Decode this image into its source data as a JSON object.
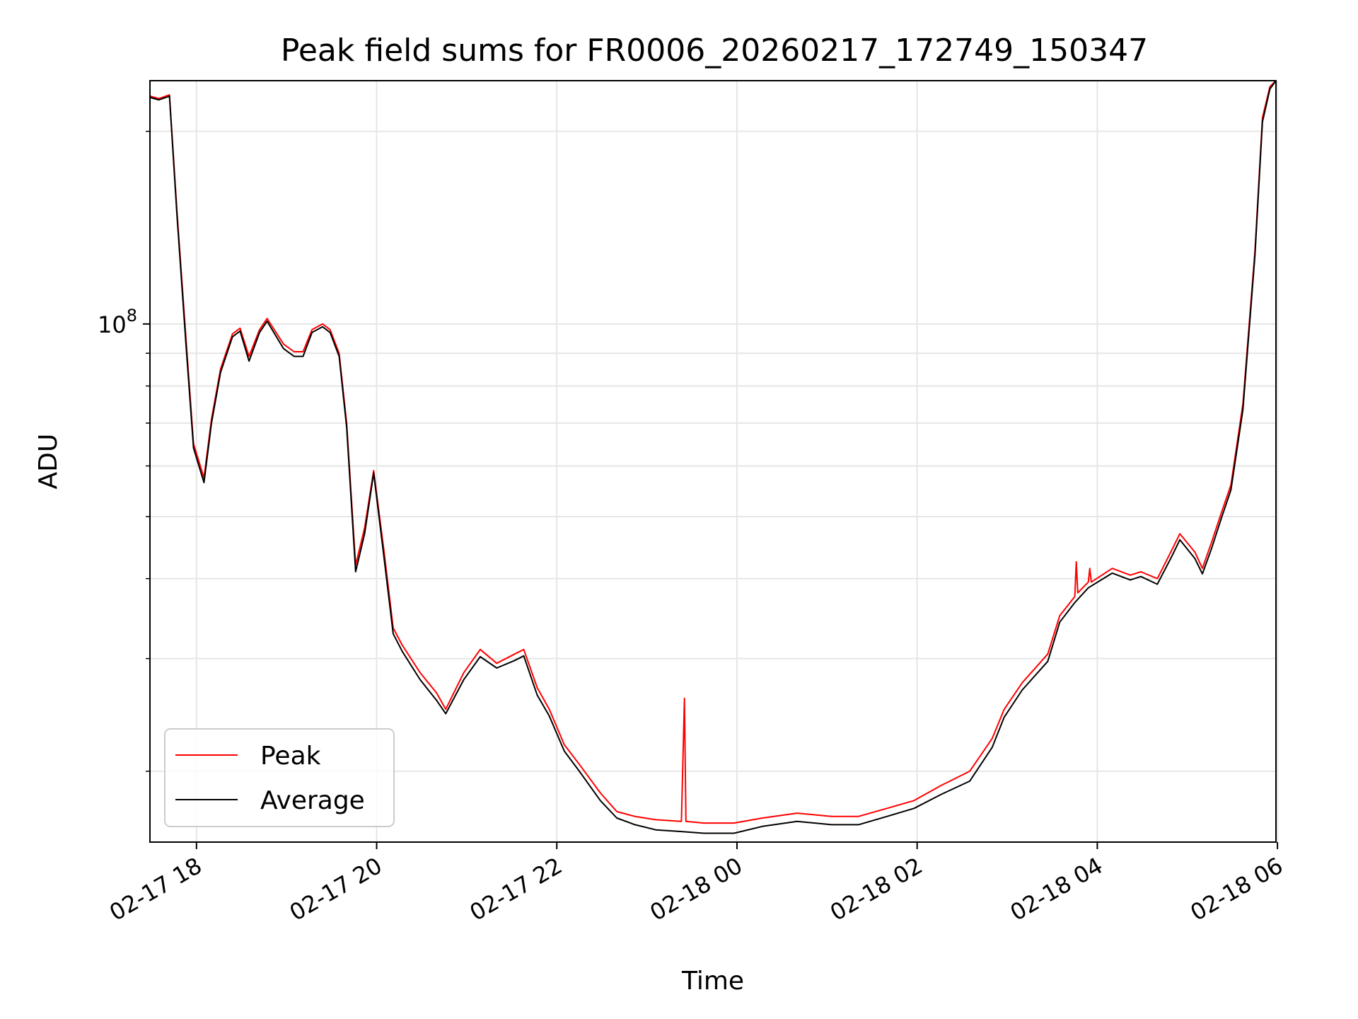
{
  "chart_data": {
    "type": "line",
    "title": "Peak field sums for FR0006_20260217_172749_150347",
    "xlabel": "Time",
    "ylabel": "ADU",
    "yscale": "log",
    "ylim": [
      15500000,
      240000000
    ],
    "xlim": [
      "2026-02-17 17:29",
      "2026-02-18 05:59"
    ],
    "x_ticks": [
      "02-17 18",
      "02-17 20",
      "02-17 22",
      "02-18 00",
      "02-18 02",
      "02-18 04",
      "02-18 06"
    ],
    "y_major_ticks": [
      {
        "value": 100000000,
        "base": "10",
        "exponent": "8"
      }
    ],
    "y_minor_ticks": [
      20000000,
      30000000,
      40000000,
      50000000,
      60000000,
      70000000,
      80000000,
      90000000,
      200000000
    ],
    "grid": true,
    "legend": {
      "position": "lower-left",
      "entries": [
        "Peak",
        "Average"
      ]
    },
    "series": [
      {
        "name": "Peak",
        "color": "#ff0000",
        "points": [
          [
            "2026-02-17 17:29",
            227000000
          ],
          [
            "2026-02-17 17:35",
            225000000
          ],
          [
            "2026-02-17 17:42",
            228000000
          ],
          [
            "2026-02-17 17:47",
            150000000
          ],
          [
            "2026-02-17 17:53",
            95000000
          ],
          [
            "2026-02-17 17:58",
            65000000
          ],
          [
            "2026-02-17 18:05",
            57500000
          ],
          [
            "2026-02-17 18:10",
            71000000
          ],
          [
            "2026-02-17 18:16",
            85000000
          ],
          [
            "2026-02-17 18:24",
            96500000
          ],
          [
            "2026-02-17 18:29",
            98500000
          ],
          [
            "2026-02-17 18:35",
            89000000
          ],
          [
            "2026-02-17 18:42",
            98000000
          ],
          [
            "2026-02-17 18:47",
            102000000
          ],
          [
            "2026-02-17 18:58",
            93000000
          ],
          [
            "2026-02-17 19:05",
            90500000
          ],
          [
            "2026-02-17 19:11",
            90500000
          ],
          [
            "2026-02-17 19:17",
            98000000
          ],
          [
            "2026-02-17 19:24",
            100000000
          ],
          [
            "2026-02-17 19:29",
            98000000
          ],
          [
            "2026-02-17 19:35",
            90000000
          ],
          [
            "2026-02-17 19:40",
            70000000
          ],
          [
            "2026-02-17 19:46",
            42000000
          ],
          [
            "2026-02-17 19:52",
            48000000
          ],
          [
            "2026-02-17 19:58",
            59000000
          ],
          [
            "2026-02-17 20:05",
            44000000
          ],
          [
            "2026-02-17 20:11",
            33500000
          ],
          [
            "2026-02-17 20:17",
            31500000
          ],
          [
            "2026-02-17 20:29",
            28500000
          ],
          [
            "2026-02-17 20:40",
            26500000
          ],
          [
            "2026-02-17 20:46",
            25000000
          ],
          [
            "2026-02-17 20:58",
            28500000
          ],
          [
            "2026-02-17 21:09",
            31000000
          ],
          [
            "2026-02-17 21:20",
            29500000
          ],
          [
            "2026-02-17 21:32",
            30500000
          ],
          [
            "2026-02-17 21:38",
            31000000
          ],
          [
            "2026-02-17 21:47",
            27000000
          ],
          [
            "2026-02-17 21:55",
            25000000
          ],
          [
            "2026-02-17 22:05",
            22000000
          ],
          [
            "2026-02-17 22:15",
            20500000
          ],
          [
            "2026-02-17 22:29",
            18500000
          ],
          [
            "2026-02-17 22:40",
            17300000
          ],
          [
            "2026-02-17 22:52",
            17000000
          ],
          [
            "2026-02-17 23:06",
            16800000
          ],
          [
            "2026-02-17 23:23",
            16700000
          ],
          [
            "2026-02-17 23:25",
            26000000
          ],
          [
            "2026-02-17 23:26",
            16700000
          ],
          [
            "2026-02-17 23:38",
            16600000
          ],
          [
            "2026-02-17 23:58",
            16600000
          ],
          [
            "2026-02-18 00:17",
            16900000
          ],
          [
            "2026-02-18 00:40",
            17200000
          ],
          [
            "2026-02-18 01:03",
            17000000
          ],
          [
            "2026-02-18 01:21",
            17000000
          ],
          [
            "2026-02-18 01:40",
            17500000
          ],
          [
            "2026-02-18 01:58",
            18000000
          ],
          [
            "2026-02-18 02:16",
            19000000
          ],
          [
            "2026-02-18 02:35",
            20000000
          ],
          [
            "2026-02-18 02:50",
            22500000
          ],
          [
            "2026-02-18 02:58",
            25000000
          ],
          [
            "2026-02-18 03:10",
            27500000
          ],
          [
            "2026-02-18 03:27",
            30500000
          ],
          [
            "2026-02-18 03:35",
            35000000
          ],
          [
            "2026-02-18 03:45",
            37500000
          ],
          [
            "2026-02-18 03:46",
            42500000
          ],
          [
            "2026-02-18 03:47",
            38000000
          ],
          [
            "2026-02-18 03:54",
            39500000
          ],
          [
            "2026-02-18 03:55",
            41500000
          ],
          [
            "2026-02-18 03:56",
            39500000
          ],
          [
            "2026-02-18 04:10",
            41500000
          ],
          [
            "2026-02-18 04:22",
            40500000
          ],
          [
            "2026-02-18 04:29",
            41000000
          ],
          [
            "2026-02-18 04:40",
            40000000
          ],
          [
            "2026-02-18 04:50",
            44500000
          ],
          [
            "2026-02-18 04:55",
            47000000
          ],
          [
            "2026-02-18 05:05",
            44000000
          ],
          [
            "2026-02-18 05:10",
            41500000
          ],
          [
            "2026-02-18 05:16",
            45500000
          ],
          [
            "2026-02-18 05:23",
            51000000
          ],
          [
            "2026-02-18 05:29",
            56000000
          ],
          [
            "2026-02-18 05:37",
            75000000
          ],
          [
            "2026-02-18 05:45",
            130000000
          ],
          [
            "2026-02-18 05:50",
            210000000
          ],
          [
            "2026-02-18 05:55",
            235000000
          ],
          [
            "2026-02-18 05:59",
            240000000
          ]
        ]
      },
      {
        "name": "Average",
        "color": "#000000",
        "points": [
          [
            "2026-02-17 17:29",
            226000000
          ],
          [
            "2026-02-17 17:35",
            224000000
          ],
          [
            "2026-02-17 17:42",
            227000000
          ],
          [
            "2026-02-17 17:47",
            148000000
          ],
          [
            "2026-02-17 17:53",
            93000000
          ],
          [
            "2026-02-17 17:58",
            64000000
          ],
          [
            "2026-02-17 18:05",
            56500000
          ],
          [
            "2026-02-17 18:10",
            70000000
          ],
          [
            "2026-02-17 18:16",
            84000000
          ],
          [
            "2026-02-17 18:24",
            95500000
          ],
          [
            "2026-02-17 18:29",
            97500000
          ],
          [
            "2026-02-17 18:35",
            87500000
          ],
          [
            "2026-02-17 18:42",
            97000000
          ],
          [
            "2026-02-17 18:47",
            101000000
          ],
          [
            "2026-02-17 18:58",
            91500000
          ],
          [
            "2026-02-17 19:05",
            89000000
          ],
          [
            "2026-02-17 19:11",
            89000000
          ],
          [
            "2026-02-17 19:17",
            97000000
          ],
          [
            "2026-02-17 19:24",
            99000000
          ],
          [
            "2026-02-17 19:29",
            97000000
          ],
          [
            "2026-02-17 19:35",
            89000000
          ],
          [
            "2026-02-17 19:40",
            69000000
          ],
          [
            "2026-02-17 19:46",
            41000000
          ],
          [
            "2026-02-17 19:52",
            47000000
          ],
          [
            "2026-02-17 19:58",
            58500000
          ],
          [
            "2026-02-17 20:05",
            43000000
          ],
          [
            "2026-02-17 20:11",
            32800000
          ],
          [
            "2026-02-17 20:17",
            30800000
          ],
          [
            "2026-02-17 20:29",
            27800000
          ],
          [
            "2026-02-17 20:40",
            25800000
          ],
          [
            "2026-02-17 20:46",
            24600000
          ],
          [
            "2026-02-17 20:58",
            27800000
          ],
          [
            "2026-02-17 21:09",
            30200000
          ],
          [
            "2026-02-17 21:20",
            29000000
          ],
          [
            "2026-02-17 21:32",
            29800000
          ],
          [
            "2026-02-17 21:38",
            30300000
          ],
          [
            "2026-02-17 21:47",
            26300000
          ],
          [
            "2026-02-17 21:55",
            24400000
          ],
          [
            "2026-02-17 22:05",
            21500000
          ],
          [
            "2026-02-17 22:15",
            20000000
          ],
          [
            "2026-02-17 22:29",
            18000000
          ],
          [
            "2026-02-17 22:40",
            16900000
          ],
          [
            "2026-02-17 22:52",
            16500000
          ],
          [
            "2026-02-17 23:06",
            16200000
          ],
          [
            "2026-02-17 23:23",
            16100000
          ],
          [
            "2026-02-17 23:38",
            16000000
          ],
          [
            "2026-02-17 23:58",
            16000000
          ],
          [
            "2026-02-18 00:17",
            16400000
          ],
          [
            "2026-02-18 00:40",
            16700000
          ],
          [
            "2026-02-18 01:03",
            16500000
          ],
          [
            "2026-02-18 01:21",
            16500000
          ],
          [
            "2026-02-18 01:40",
            17000000
          ],
          [
            "2026-02-18 01:58",
            17500000
          ],
          [
            "2026-02-18 02:16",
            18400000
          ],
          [
            "2026-02-18 02:35",
            19300000
          ],
          [
            "2026-02-18 02:50",
            21800000
          ],
          [
            "2026-02-18 02:58",
            24300000
          ],
          [
            "2026-02-18 03:10",
            26800000
          ],
          [
            "2026-02-18 03:27",
            29700000
          ],
          [
            "2026-02-18 03:35",
            34200000
          ],
          [
            "2026-02-18 03:45",
            36700000
          ],
          [
            "2026-02-18 03:54",
            38700000
          ],
          [
            "2026-02-18 04:10",
            40800000
          ],
          [
            "2026-02-18 04:22",
            39800000
          ],
          [
            "2026-02-18 04:29",
            40300000
          ],
          [
            "2026-02-18 04:40",
            39200000
          ],
          [
            "2026-02-18 04:50",
            43500000
          ],
          [
            "2026-02-18 04:55",
            46000000
          ],
          [
            "2026-02-18 05:05",
            43000000
          ],
          [
            "2026-02-18 05:10",
            40700000
          ],
          [
            "2026-02-18 05:16",
            44500000
          ],
          [
            "2026-02-18 05:23",
            50000000
          ],
          [
            "2026-02-18 05:29",
            55000000
          ],
          [
            "2026-02-18 05:37",
            73500000
          ],
          [
            "2026-02-18 05:45",
            128000000
          ],
          [
            "2026-02-18 05:50",
            207000000
          ],
          [
            "2026-02-18 05:55",
            233000000
          ],
          [
            "2026-02-18 05:59",
            240000000
          ]
        ]
      }
    ]
  }
}
